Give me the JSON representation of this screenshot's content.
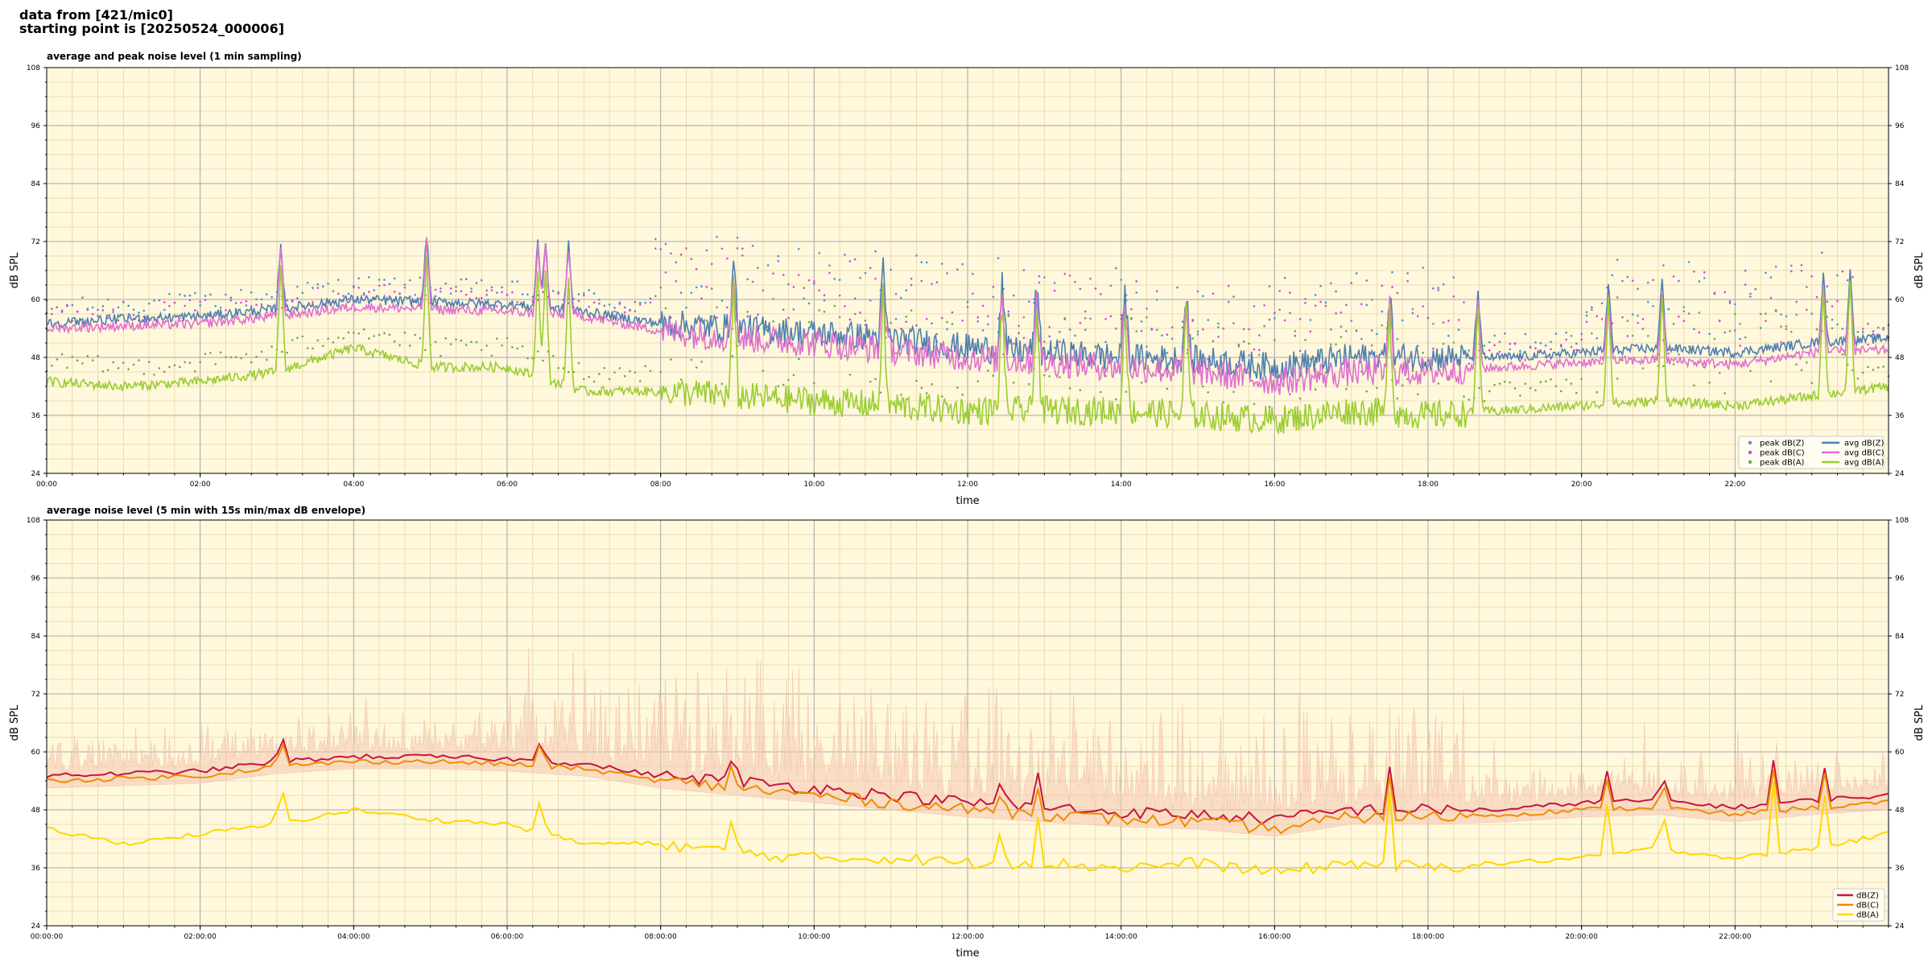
{
  "header": {
    "line1": "data from [421/mic0]",
    "line2": "starting point is [20250524_000006]"
  },
  "colors": {
    "plot_bg": "#fff8dc",
    "peak_z": "#4a90d9",
    "peak_c": "#e040e0",
    "peak_a": "#6aa84f",
    "avg_z": "#4f7fb0",
    "avg_c": "#e070d0",
    "avg_a": "#9acd32",
    "lvl_z": "#c8143c",
    "lvl_c": "#f08c00",
    "lvl_a": "#ffd700",
    "envelope": "#f4c6b0"
  },
  "chart_data": [
    {
      "type": "line",
      "title": "average and peak noise level (1 min sampling)",
      "xlabel": "time",
      "ylabel": "dB SPL",
      "ylim": [
        24,
        108
      ],
      "xlim_hours": [
        0,
        24
      ],
      "yticks": [
        "24",
        "36",
        "48",
        "60",
        "72",
        "84",
        "96",
        "108"
      ],
      "xticks": [
        "00:00",
        "02:00",
        "04:00",
        "06:00",
        "08:00",
        "10:00",
        "12:00",
        "14:00",
        "16:00",
        "18:00",
        "20:00",
        "22:00"
      ],
      "grid": true,
      "legend": "bottom-right",
      "legend_entries": [
        "peak dB(Z)",
        "peak dB(C)",
        "peak dB(A)",
        "avg dB(Z)",
        "avg dB(C)",
        "avg dB(A)"
      ],
      "series": [
        {
          "name": "avg dB(Z)",
          "x_hours": [
            0,
            1,
            2,
            3,
            4,
            5,
            6,
            7,
            8,
            9,
            10,
            11,
            12,
            13,
            14,
            15,
            16,
            17,
            18,
            19,
            20,
            21,
            22,
            23,
            24
          ],
          "values": [
            55,
            56,
            56.5,
            58,
            60,
            59.5,
            59,
            57.5,
            55,
            54,
            53,
            52,
            50,
            49,
            48,
            47.5,
            46,
            48,
            48,
            48,
            49,
            50,
            49,
            51,
            52
          ]
        },
        {
          "name": "avg dB(C)",
          "x_hours": [
            0,
            1,
            2,
            3,
            4,
            5,
            6,
            7,
            8,
            9,
            10,
            11,
            12,
            13,
            14,
            15,
            16,
            17,
            18,
            19,
            20,
            21,
            22,
            23,
            24
          ],
          "values": [
            54,
            54.5,
            55,
            56.5,
            58.5,
            58,
            57.5,
            56.5,
            53.5,
            52,
            51,
            49.5,
            48,
            47,
            46,
            45,
            43,
            45,
            45,
            46,
            47,
            47.5,
            46.5,
            49,
            49.5
          ]
        },
        {
          "name": "avg dB(A)",
          "x_hours": [
            0,
            1,
            2,
            3,
            4,
            5,
            6,
            7,
            8,
            9,
            10,
            11,
            12,
            13,
            14,
            15,
            16,
            17,
            18,
            19,
            20,
            21,
            22,
            23,
            24
          ],
          "values": [
            43,
            42,
            43,
            45,
            50,
            46,
            46,
            41,
            41,
            40,
            39,
            38,
            37,
            37,
            37,
            36,
            35,
            37,
            36,
            37,
            38,
            39,
            38,
            40,
            42
          ]
        }
      ]
    },
    {
      "type": "line",
      "title": "average noise level (5 min with 15s min/max dB envelope)",
      "xlabel": "time",
      "ylabel": "dB SPL",
      "ylim": [
        24,
        108
      ],
      "xlim_hours": [
        0,
        24
      ],
      "yticks": [
        "24",
        "36",
        "48",
        "60",
        "72",
        "84",
        "96",
        "108"
      ],
      "xticks": [
        "00:00:00",
        "02:00:00",
        "04:00:00",
        "06:00:00",
        "08:00:00",
        "10:00:00",
        "12:00:00",
        "14:00:00",
        "16:00:00",
        "18:00:00",
        "20:00:00",
        "22:00:00"
      ],
      "grid": true,
      "legend": "bottom-right",
      "legend_entries": [
        "dB(Z)",
        "dB(C)",
        "dB(A)"
      ],
      "series": [
        {
          "name": "dB(Z)",
          "x_hours": [
            0,
            1,
            2,
            3,
            4,
            5,
            6,
            7,
            8,
            9,
            10,
            11,
            12,
            13,
            14,
            15,
            16,
            17,
            18,
            19,
            20,
            21,
            22,
            23,
            24
          ],
          "values": [
            55,
            55.5,
            56,
            58,
            59,
            59,
            58.5,
            57.5,
            55,
            54,
            52.5,
            51,
            49.5,
            48.5,
            47.5,
            47,
            46,
            48,
            48,
            48,
            49.5,
            50,
            48.5,
            50,
            51
          ]
        },
        {
          "name": "dB(C)",
          "x_hours": [
            0,
            1,
            2,
            3,
            4,
            5,
            6,
            7,
            8,
            9,
            10,
            11,
            12,
            13,
            14,
            15,
            16,
            17,
            18,
            19,
            20,
            21,
            22,
            23,
            24
          ],
          "values": [
            54,
            54.5,
            55,
            57,
            58,
            58,
            57.5,
            56.5,
            54,
            52.5,
            51,
            49.5,
            48,
            47,
            46,
            45.5,
            44,
            46.5,
            46.5,
            47,
            48,
            48.5,
            47,
            48.5,
            49.5
          ]
        },
        {
          "name": "dB(A)",
          "x_hours": [
            0,
            1,
            2,
            3,
            4,
            5,
            6,
            7,
            8,
            9,
            10,
            11,
            12,
            13,
            14,
            15,
            16,
            17,
            18,
            19,
            20,
            21,
            22,
            23,
            24
          ],
          "values": [
            44,
            41,
            43,
            45,
            48,
            46,
            45,
            41,
            41,
            39,
            38,
            38,
            37,
            37,
            36,
            37,
            35,
            37,
            36,
            37,
            38,
            40,
            38,
            40,
            43
          ]
        }
      ]
    }
  ]
}
